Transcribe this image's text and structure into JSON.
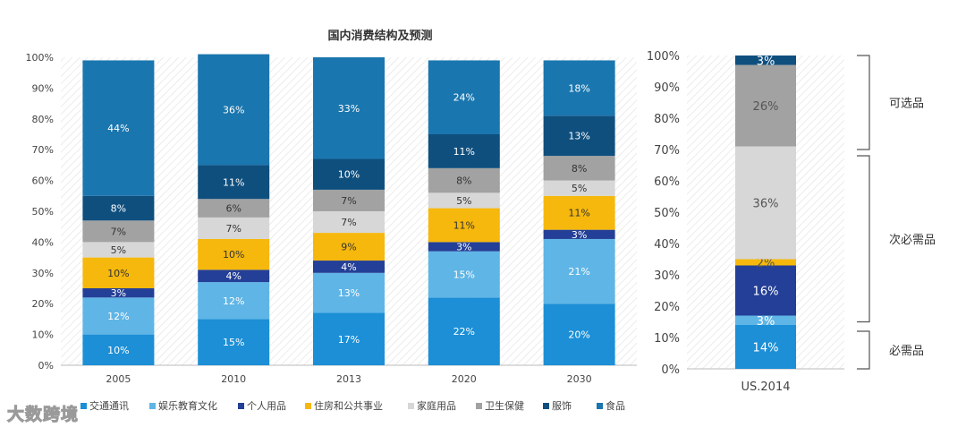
{
  "chart_data": [
    {
      "type": "bar",
      "stacked": true,
      "title": "国内消费结构及预测",
      "categories": [
        "2005",
        "2010",
        "2013",
        "2020",
        "2030"
      ],
      "ylim": [
        0,
        100
      ],
      "yticks": [
        "0%",
        "10%",
        "20%",
        "30%",
        "40%",
        "50%",
        "60%",
        "70%",
        "80%",
        "90%",
        "100%"
      ],
      "series": [
        {
          "name": "交通通讯",
          "color": "#1c8fd6",
          "values": [
            10,
            15,
            17,
            22,
            20
          ]
        },
        {
          "name": "娱乐教育文化",
          "color": "#5fb5e6",
          "values": [
            12,
            12,
            13,
            15,
            21
          ]
        },
        {
          "name": "个人用品",
          "color": "#243f97",
          "values": [
            3,
            4,
            4,
            3,
            3
          ]
        },
        {
          "name": "住房和公共事业",
          "color": "#f6b80c",
          "values": [
            10,
            10,
            9,
            11,
            11
          ]
        },
        {
          "name": "家庭用品",
          "color": "#d7d7d7",
          "values": [
            5,
            7,
            7,
            5,
            5
          ]
        },
        {
          "name": "卫生保健",
          "color": "#a2a2a2",
          "values": [
            7,
            6,
            7,
            8,
            8
          ]
        },
        {
          "name": "服饰",
          "color": "#0f4f7e",
          "values": [
            8,
            11,
            10,
            11,
            13
          ]
        },
        {
          "name": "食品",
          "color": "#1a76ae",
          "values": [
            44,
            36,
            33,
            24,
            18
          ]
        }
      ],
      "data_labels": [
        [
          "10%",
          "15%",
          "17%",
          "22%",
          "20%"
        ],
        [
          "12%",
          "12%",
          "13%",
          "15%",
          "21%"
        ],
        [
          "3%",
          "4%",
          "4%",
          "3%",
          "3%"
        ],
        [
          "10%",
          "10%",
          "9%",
          "11%",
          "11%"
        ],
        [
          "5%",
          "7%",
          "7%",
          "5%",
          "5%"
        ],
        [
          "7%",
          "6%",
          "7%",
          "8%",
          "8%"
        ],
        [
          "8%",
          "11%",
          "10%",
          "11%",
          "13%"
        ],
        [
          "44%",
          "36%",
          "33%",
          "24%",
          "18%"
        ]
      ],
      "grid": "diagonal hatched background",
      "legend_position": "bottom"
    },
    {
      "type": "bar",
      "stacked": true,
      "categories": [
        "US.2014"
      ],
      "ylim": [
        0,
        100
      ],
      "yticks": [
        "0%",
        "10%",
        "20%",
        "30%",
        "40%",
        "50%",
        "60%",
        "70%",
        "80%",
        "90%",
        "100%"
      ],
      "series": [
        {
          "name": "交通通讯",
          "color": "#1c8fd6",
          "values": [
            14
          ]
        },
        {
          "name": "娱乐教育文化",
          "color": "#5fb5e6",
          "values": [
            3
          ]
        },
        {
          "name": "个人用品",
          "color": "#243f97",
          "values": [
            16
          ]
        },
        {
          "name": "住房和公共事业",
          "color": "#f6b80c",
          "values": [
            2
          ]
        },
        {
          "name": "家庭用品",
          "color": "#d7d7d7",
          "values": [
            36
          ]
        },
        {
          "name": "卫生保健",
          "color": "#a2a2a2",
          "values": [
            26
          ]
        },
        {
          "name": "服饰",
          "color": "#0f4f7e",
          "values": [
            3
          ]
        }
      ],
      "data_labels": [
        [
          "14%"
        ],
        [
          "3%"
        ],
        [
          "16%"
        ],
        [
          "2%"
        ],
        [
          "36%"
        ],
        [
          "26%"
        ],
        [
          "3%"
        ]
      ],
      "groups": [
        {
          "label": "可选品",
          "from": 70,
          "to": 100
        },
        {
          "label": "次必需品",
          "from": 15,
          "to": 68
        },
        {
          "label": "必需品",
          "from": 0,
          "to": 12
        }
      ]
    }
  ],
  "watermark": "大数跨境",
  "colors": {
    "text": "#444444",
    "axis": "#bbbbbb",
    "hatch": "#e6e6e6"
  }
}
